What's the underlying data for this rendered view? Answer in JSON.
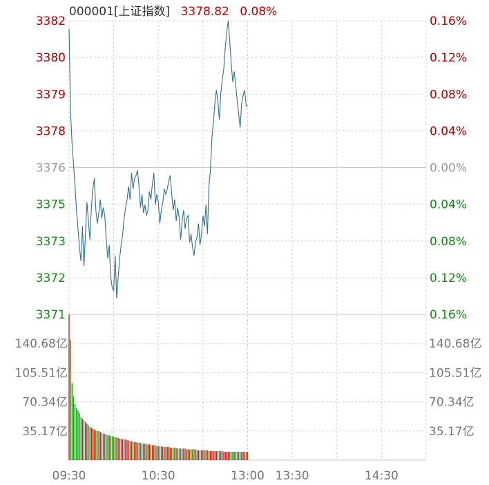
{
  "header": {
    "code_name": "000001[上证指数]",
    "last_price": "3378.82",
    "change_pct": "0.08%"
  },
  "colors": {
    "up": "#b30000",
    "down": "#138a13",
    "flat": "#9a9a9a",
    "line": "#2f6f8f",
    "grid": "#d0d0d0"
  },
  "chart_data": {
    "type": "line",
    "price_axis": {
      "ticks": [
        "3382",
        "3380",
        "3379",
        "3378",
        "3376",
        "3375",
        "3373",
        "3372",
        "3371"
      ],
      "pct_ticks": [
        "0.16%",
        "0.12%",
        "0.08%",
        "0.04%",
        "0.00%",
        "0.04%",
        "0.08%",
        "0.12%",
        "0.16%"
      ],
      "ylim": [
        3371,
        3382
      ],
      "baseline": 3376
    },
    "time_axis": {
      "ticks": [
        "09:30",
        "10:30",
        "13:00",
        "13:30",
        "14:30"
      ],
      "xlim": [
        0,
        240
      ],
      "last_minute": 120
    },
    "series": [
      {
        "x": [
          0,
          1,
          2,
          3,
          4,
          5,
          6,
          7,
          8,
          9,
          10,
          11,
          12,
          13,
          14,
          15,
          16,
          17,
          18,
          19,
          20,
          21,
          22,
          23,
          24,
          25,
          26,
          27,
          28,
          29,
          30,
          31,
          32,
          33,
          34,
          35,
          36,
          37,
          38,
          39,
          40,
          41,
          42,
          43,
          44,
          45,
          46,
          47,
          48,
          49,
          50,
          51,
          52,
          53,
          54,
          55,
          56,
          57,
          58,
          59,
          60,
          61,
          62,
          63,
          64,
          65,
          66,
          67,
          68,
          69,
          70,
          71,
          72,
          73,
          74,
          75,
          76,
          77,
          78,
          79,
          80,
          81,
          82,
          83,
          84,
          85,
          86,
          87,
          88,
          89,
          90,
          91,
          92,
          93,
          94,
          95,
          96,
          97,
          98,
          99,
          100,
          101,
          102,
          103,
          104,
          105,
          106,
          107,
          108,
          109,
          110,
          111,
          112,
          113,
          114,
          115,
          116,
          117,
          118,
          119,
          120
        ],
        "y": [
          3381.7,
          3378.6,
          3377.4,
          3376.6,
          3375.8,
          3374.9,
          3374.2,
          3373.5,
          3373.0,
          3374.3,
          3372.8,
          3374.0,
          3375.2,
          3374.5,
          3373.8,
          3375.0,
          3375.7,
          3376.1,
          3374.9,
          3374.4,
          3374.8,
          3375.3,
          3374.6,
          3375.0,
          3374.7,
          3373.8,
          3373.1,
          3373.6,
          3372.4,
          3372.0,
          3371.9,
          3373.2,
          3371.6,
          3372.4,
          3373.1,
          3373.6,
          3374.0,
          3374.6,
          3375.0,
          3375.3,
          3375.8,
          3375.3,
          3376.3,
          3375.7,
          3376.1,
          3376.2,
          3376.4,
          3375.8,
          3375.0,
          3375.5,
          3374.8,
          3375.1,
          3374.7,
          3374.9,
          3375.6,
          3375.3,
          3375.9,
          3376.3,
          3375.1,
          3375.5,
          3375.2,
          3374.4,
          3374.9,
          3375.2,
          3375.7,
          3375.5,
          3375.7,
          3376.0,
          3376.2,
          3375.5,
          3374.9,
          3375.3,
          3374.5,
          3375.0,
          3374.6,
          3373.8,
          3374.5,
          3374.9,
          3374.2,
          3374.6,
          3374.7,
          3373.7,
          3374.0,
          3373.5,
          3373.2,
          3373.7,
          3373.9,
          3374.4,
          3373.6,
          3374.0,
          3374.7,
          3374.3,
          3375.1,
          3374.0,
          3375.8,
          3376.4,
          3377.6,
          3378.2,
          3378.9,
          3379.4,
          3379.0,
          3378.3,
          3379.3,
          3379.8,
          3380.2,
          3381.0,
          3381.6,
          3382.0,
          3381.2,
          3380.4,
          3379.7,
          3380.1,
          3379.6,
          3379.0,
          3378.5,
          3378.0,
          3378.9,
          3379.2,
          3379.4,
          3378.8,
          3378.82
        ]
      }
    ],
    "volume": {
      "ticks": [
        "140.68亿",
        "105.51亿",
        "70.34亿",
        "35.17亿"
      ],
      "tick_values": [
        140.68,
        105.51,
        70.34,
        35.17
      ],
      "ylim": [
        0,
        176
      ],
      "unit": "亿",
      "values": [
        176,
        145,
        93,
        77,
        68,
        63,
        60,
        57,
        52,
        50,
        48,
        46,
        44,
        42,
        40,
        39,
        38,
        37,
        36,
        35,
        35,
        34,
        33,
        32,
        32,
        31,
        30,
        30,
        29,
        29,
        28,
        28,
        27,
        27,
        26,
        26,
        25,
        25,
        25,
        24,
        24,
        23,
        23,
        22,
        22,
        22,
        21,
        21,
        21,
        20,
        20,
        20,
        19,
        19,
        19,
        18,
        18,
        18,
        18,
        17,
        17,
        17,
        17,
        16,
        16,
        16,
        16,
        16,
        15,
        15,
        15,
        15,
        15,
        14,
        14,
        14,
        14,
        14,
        14,
        13,
        13,
        13,
        13,
        13,
        13,
        13,
        12,
        12,
        12,
        12,
        12,
        12,
        12,
        12,
        11,
        11,
        11,
        11,
        11,
        11,
        11,
        11,
        11,
        11,
        10,
        10,
        10,
        10,
        10,
        10,
        10,
        10,
        10,
        10,
        10,
        10,
        10,
        10,
        10,
        10,
        10
      ]
    }
  }
}
